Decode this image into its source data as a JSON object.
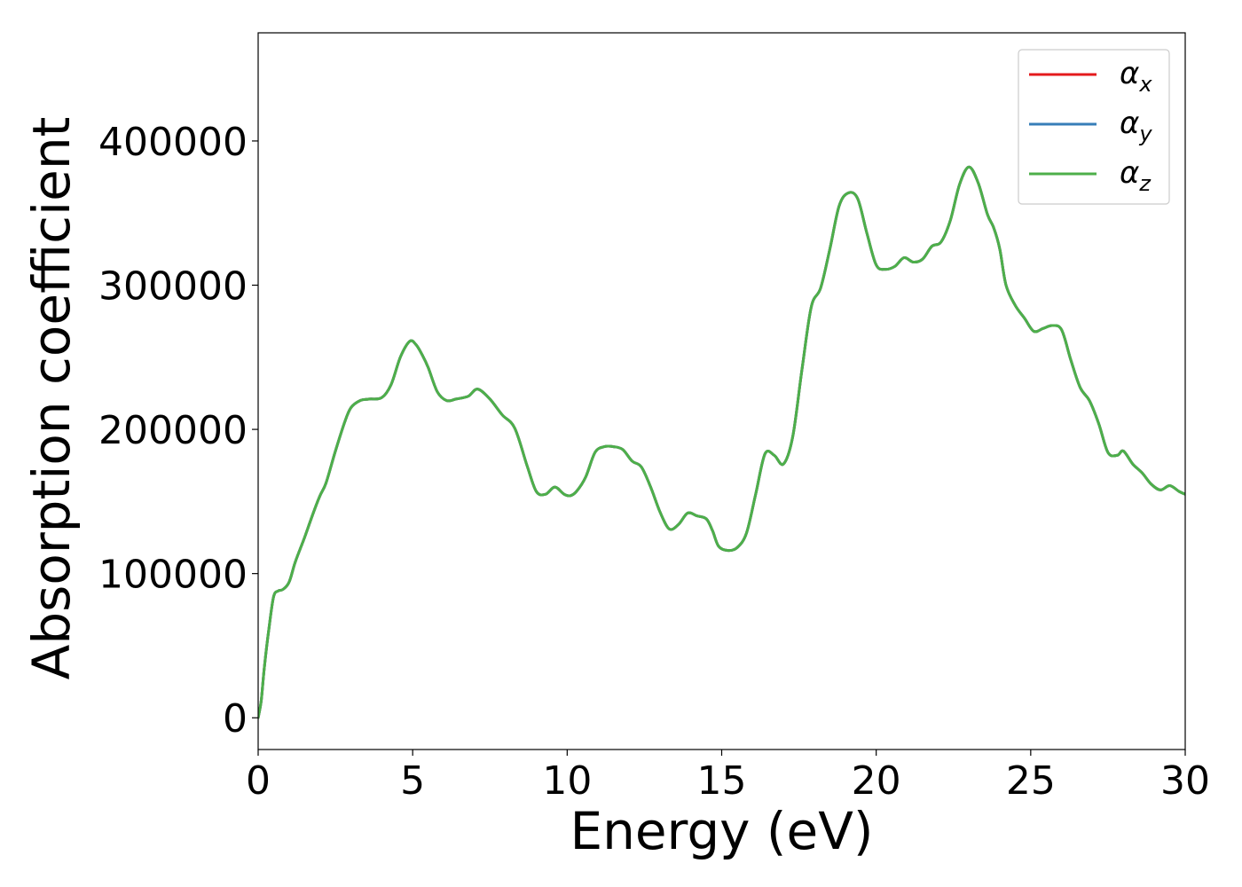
{
  "chart_data": {
    "type": "line",
    "title": "",
    "xlabel": "Energy (eV)",
    "ylabel": "Absorption coefficient",
    "xlim": [
      0,
      30
    ],
    "ylim": [
      -22000,
      475000
    ],
    "xticks": [
      0,
      5,
      10,
      15,
      20,
      25,
      30
    ],
    "xtick_labels": [
      "0",
      "5",
      "10",
      "15",
      "20",
      "25",
      "30"
    ],
    "yticks": [
      0,
      100000,
      200000,
      300000,
      400000
    ],
    "ytick_labels": [
      "0",
      "100000",
      "200000",
      "300000",
      "400000"
    ],
    "grid": false,
    "legend_position": "top-right",
    "x": [
      0,
      0.1,
      0.2,
      0.35,
      0.5,
      0.65,
      0.8,
      1.0,
      1.2,
      1.5,
      1.8,
      2.0,
      2.2,
      2.5,
      2.8,
      3.0,
      3.3,
      3.6,
      4.0,
      4.3,
      4.6,
      4.9,
      5.1,
      5.3,
      5.5,
      5.8,
      6.1,
      6.4,
      6.8,
      7.1,
      7.5,
      7.9,
      8.3,
      8.7,
      9.0,
      9.3,
      9.6,
      9.9,
      10.1,
      10.3,
      10.6,
      10.9,
      11.2,
      11.5,
      11.8,
      12.1,
      12.4,
      12.7,
      13.0,
      13.3,
      13.6,
      13.9,
      14.2,
      14.5,
      14.7,
      14.9,
      15.2,
      15.5,
      15.8,
      16.1,
      16.4,
      16.7,
      17.0,
      17.3,
      17.6,
      17.9,
      18.2,
      18.5,
      18.8,
      19.1,
      19.4,
      19.7,
      20.0,
      20.3,
      20.6,
      20.9,
      21.2,
      21.5,
      21.8,
      22.1,
      22.4,
      22.7,
      23.0,
      23.3,
      23.6,
      23.8,
      24.0,
      24.2,
      24.5,
      24.8,
      25.1,
      25.4,
      25.7,
      26.0,
      26.3,
      26.6,
      26.9,
      27.2,
      27.5,
      27.8,
      28.0,
      28.3,
      28.6,
      28.9,
      29.2,
      29.5,
      29.8,
      30.0
    ],
    "series": [
      {
        "name": "α_x",
        "color": "#e41a1c",
        "values": [
          0,
          12000,
          35000,
          62000,
          84000,
          88000,
          89000,
          94000,
          108000,
          125000,
          143000,
          154000,
          163000,
          185000,
          205000,
          215000,
          220000,
          221000,
          222000,
          231000,
          250000,
          261000,
          259000,
          252000,
          243000,
          226000,
          220000,
          221000,
          223000,
          228000,
          221000,
          210000,
          201000,
          175000,
          157000,
          155000,
          160000,
          155000,
          154000,
          157000,
          167000,
          184000,
          188000,
          188000,
          186000,
          178000,
          174000,
          160000,
          143000,
          131000,
          134000,
          142000,
          140000,
          138000,
          130000,
          119000,
          116000,
          118000,
          128000,
          155000,
          183000,
          182000,
          176000,
          195000,
          242000,
          285000,
          298000,
          325000,
          355000,
          364000,
          360000,
          336000,
          314000,
          311000,
          313000,
          319000,
          316000,
          318000,
          327000,
          330000,
          345000,
          370000,
          382000,
          371000,
          349000,
          340000,
          325000,
          300000,
          286000,
          277000,
          268000,
          270000,
          272000,
          269000,
          248000,
          229000,
          220000,
          204000,
          184000,
          182000,
          185000,
          176000,
          170000,
          162000,
          158000,
          161000,
          157000,
          155000
        ]
      },
      {
        "name": "α_y",
        "color": "#377eb8",
        "values": [
          0,
          12000,
          35000,
          62000,
          84000,
          88000,
          89000,
          94000,
          108000,
          125000,
          143000,
          154000,
          163000,
          185000,
          205000,
          215000,
          220000,
          221000,
          222000,
          231000,
          250000,
          261000,
          259000,
          252000,
          243000,
          226000,
          220000,
          221000,
          223000,
          228000,
          221000,
          210000,
          201000,
          175000,
          157000,
          155000,
          160000,
          155000,
          154000,
          157000,
          167000,
          184000,
          188000,
          188000,
          186000,
          178000,
          174000,
          160000,
          143000,
          131000,
          134000,
          142000,
          140000,
          138000,
          130000,
          119000,
          116000,
          118000,
          128000,
          155000,
          183000,
          182000,
          176000,
          195000,
          242000,
          285000,
          298000,
          325000,
          355000,
          364000,
          360000,
          336000,
          314000,
          311000,
          313000,
          319000,
          316000,
          318000,
          327000,
          330000,
          345000,
          370000,
          382000,
          371000,
          349000,
          340000,
          325000,
          300000,
          286000,
          277000,
          268000,
          270000,
          272000,
          269000,
          248000,
          229000,
          220000,
          204000,
          184000,
          182000,
          185000,
          176000,
          170000,
          162000,
          158000,
          161000,
          157000,
          155000
        ]
      },
      {
        "name": "α_z",
        "color": "#4daf4a",
        "values": [
          0,
          12000,
          35000,
          62000,
          84000,
          88000,
          89000,
          94000,
          108000,
          125000,
          143000,
          154000,
          163000,
          185000,
          205000,
          215000,
          220000,
          221000,
          222000,
          231000,
          250000,
          261000,
          259000,
          252000,
          243000,
          226000,
          220000,
          221000,
          223000,
          228000,
          221000,
          210000,
          201000,
          175000,
          157000,
          155000,
          160000,
          155000,
          154000,
          157000,
          167000,
          184000,
          188000,
          188000,
          186000,
          178000,
          174000,
          160000,
          143000,
          131000,
          134000,
          142000,
          140000,
          138000,
          130000,
          119000,
          116000,
          118000,
          128000,
          155000,
          183000,
          182000,
          176000,
          195000,
          242000,
          285000,
          298000,
          325000,
          355000,
          364000,
          360000,
          336000,
          314000,
          311000,
          313000,
          319000,
          316000,
          318000,
          327000,
          330000,
          345000,
          370000,
          382000,
          371000,
          349000,
          340000,
          325000,
          300000,
          286000,
          277000,
          268000,
          270000,
          272000,
          269000,
          248000,
          229000,
          220000,
          204000,
          184000,
          182000,
          185000,
          176000,
          170000,
          162000,
          158000,
          161000,
          157000,
          155000
        ]
      }
    ],
    "legend": [
      {
        "symbol": "α",
        "subscript": "x",
        "color": "#e41a1c"
      },
      {
        "symbol": "α",
        "subscript": "y",
        "color": "#377eb8"
      },
      {
        "symbol": "α",
        "subscript": "z",
        "color": "#4daf4a"
      }
    ]
  }
}
